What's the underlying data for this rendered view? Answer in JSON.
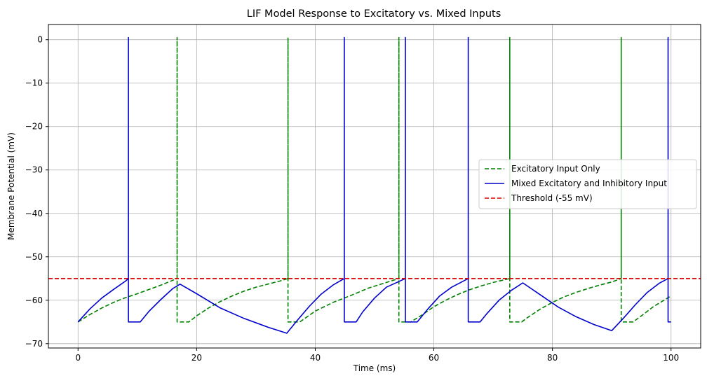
{
  "chart_data": {
    "type": "line",
    "title": "LIF Model Response to Excitatory vs. Mixed Inputs",
    "xlabel": "Time (ms)",
    "ylabel": "Membrane Potential (mV)",
    "xlim": [
      -5,
      105
    ],
    "ylim": [
      -71,
      3.5
    ],
    "grid": true,
    "legend_position": "center-right",
    "x_ticks": [
      0,
      20,
      40,
      60,
      80,
      100
    ],
    "y_ticks": [
      0,
      -10,
      -20,
      -30,
      -40,
      -50,
      -60,
      -70
    ],
    "x_tick_labels": [
      "0",
      "20",
      "40",
      "60",
      "80",
      "100"
    ],
    "y_tick_labels": [
      "0",
      "−10",
      "−20",
      "−30",
      "−40",
      "−50",
      "−60",
      "−70"
    ],
    "series": [
      {
        "name": "Excitatory Input Only",
        "color": "#008000",
        "dash": "dashed",
        "x": [
          0,
          2,
          4,
          6,
          8,
          10,
          12,
          14,
          16.7,
          16.7,
          16.7,
          16.7,
          18.7,
          20,
          22,
          24,
          26,
          28,
          30,
          32,
          34,
          35.4,
          35.4,
          35.4,
          35.4,
          37.4,
          40,
          43,
          46,
          49,
          52,
          54.1,
          54.1,
          54.1,
          54.1,
          56.1,
          58,
          60,
          62,
          64,
          66,
          68,
          70,
          72.8,
          72.8,
          72.8,
          72.8,
          74.8,
          76,
          78,
          80,
          82,
          84,
          86,
          88,
          90,
          91.6,
          91.6,
          91.6,
          91.6,
          93.6,
          95,
          97,
          100
        ],
        "y": [
          -65,
          -63.3,
          -61.8,
          -60.5,
          -59.4,
          -58.5,
          -57.5,
          -56.5,
          -55,
          0.5,
          0.5,
          -65,
          -65,
          -63.6,
          -61.8,
          -60.3,
          -59,
          -57.9,
          -57,
          -56.3,
          -55.6,
          -55,
          0.5,
          0.5,
          -65,
          -65,
          -62.5,
          -60.5,
          -58.9,
          -57.2,
          -55.9,
          -55,
          0.5,
          0.5,
          -65,
          -65,
          -63.4,
          -61.5,
          -60,
          -58.7,
          -57.6,
          -56.7,
          -55.9,
          -55,
          0.5,
          0.5,
          -65,
          -65,
          -63.8,
          -62,
          -60.5,
          -59.2,
          -58.2,
          -57.3,
          -56.5,
          -55.8,
          -55,
          0.5,
          0.5,
          -65,
          -65,
          -63.6,
          -61.5,
          -59
        ]
      },
      {
        "name": "Mixed Excitatory and Inhibitory Input",
        "color": "#0000cc",
        "dash": "solid",
        "x": [
          0,
          2,
          4,
          6,
          8,
          8.5,
          8.5,
          8.5,
          8.5,
          10.5,
          12,
          14,
          16,
          17.2,
          20,
          24,
          28,
          32,
          35.2,
          37,
          39,
          41,
          43,
          44.9,
          44.9,
          44.9,
          44.9,
          46.9,
          48,
          50,
          52,
          55.2,
          55.2,
          55.2,
          55.2,
          57.2,
          59,
          61,
          63,
          65.8,
          65.8,
          65.8,
          65.8,
          67.8,
          69,
          71,
          73,
          75,
          78,
          81,
          84,
          87,
          90,
          92,
          94,
          96,
          98,
          99.5,
          99.5,
          99.5,
          99.5,
          100
        ],
        "y": [
          -65,
          -62,
          -59.5,
          -57.5,
          -55.6,
          -55,
          0.5,
          0.5,
          -65,
          -65,
          -62.5,
          -59.8,
          -57.3,
          -56.3,
          -58.5,
          -61.8,
          -64.2,
          -66.2,
          -67.6,
          -64.6,
          -61.4,
          -58.6,
          -56.5,
          -55,
          0.5,
          0.5,
          -65,
          -65,
          -62.7,
          -59.5,
          -57,
          -55,
          0.5,
          0.5,
          -65,
          -65,
          -62,
          -59,
          -57,
          -55,
          0.5,
          0.5,
          -65,
          -65,
          -63,
          -60,
          -57.8,
          -56,
          -58.8,
          -61.6,
          -63.8,
          -65.6,
          -67,
          -64.1,
          -61,
          -58.2,
          -56.1,
          -55,
          0.5,
          0.5,
          -65,
          -65
        ]
      },
      {
        "name": "Threshold (-55 mV)",
        "color": "#dd0000",
        "dash": "dashed",
        "x": [
          -5,
          105
        ],
        "y": [
          -55,
          -55
        ]
      }
    ]
  }
}
